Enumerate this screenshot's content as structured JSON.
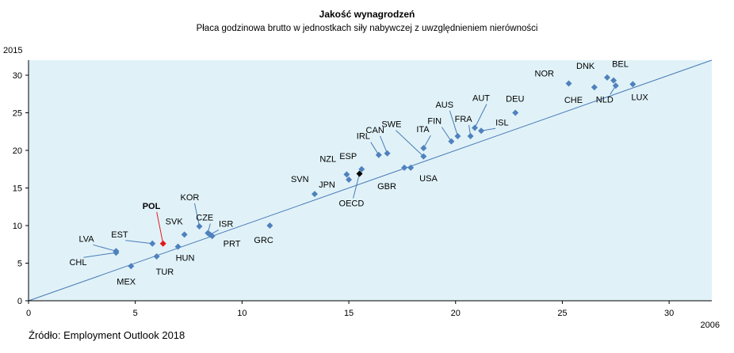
{
  "chart_data": {
    "type": "scatter",
    "title": "Jakość wynagrodzeń",
    "subtitle": "Płaca godzinowa brutto w jednostkach siły nabywczej z uwzględnieniem nierówności",
    "xlabel": "2006",
    "ylabel": "2015",
    "xlim": [
      0,
      32
    ],
    "ylim": [
      0,
      32
    ],
    "xticks": [
      0,
      5,
      10,
      15,
      20,
      25,
      30
    ],
    "yticks": [
      0,
      5,
      10,
      15,
      20,
      25,
      30
    ],
    "grid": false,
    "reference_line": "y = x",
    "colors": {
      "point": "#4f81bd",
      "highlight": "#e31a1c",
      "oecd": "#000000",
      "plot_background": "#e0f2f8",
      "line": "#4a7ab5"
    },
    "points": [
      {
        "label": "MEX",
        "x": 4.8,
        "y": 4.6
      },
      {
        "label": "CHL",
        "x": 4.1,
        "y": 6.4
      },
      {
        "label": "LVA",
        "x": 4.1,
        "y": 6.6
      },
      {
        "label": "EST",
        "x": 5.8,
        "y": 7.6
      },
      {
        "label": "TUR",
        "x": 6.0,
        "y": 5.9
      },
      {
        "label": "POL",
        "x": 6.3,
        "y": 7.6,
        "highlight": true
      },
      {
        "label": "HUN",
        "x": 7.0,
        "y": 7.2
      },
      {
        "label": "SVK",
        "x": 7.3,
        "y": 8.8
      },
      {
        "label": "KOR",
        "x": 8.0,
        "y": 9.9
      },
      {
        "label": "CZE",
        "x": 8.4,
        "y": 9.0
      },
      {
        "label": "ISR",
        "x": 8.5,
        "y": 8.8
      },
      {
        "label": "PRT",
        "x": 8.6,
        "y": 8.6
      },
      {
        "label": "GRC",
        "x": 11.3,
        "y": 10.0
      },
      {
        "label": "SVN",
        "x": 13.4,
        "y": 14.2
      },
      {
        "label": "NZL",
        "x": 14.9,
        "y": 16.8
      },
      {
        "label": "JPN",
        "x": 15.0,
        "y": 16.1
      },
      {
        "label": "OECD",
        "x": 15.5,
        "y": 16.9,
        "oecd": true
      },
      {
        "label": "ESP",
        "x": 15.6,
        "y": 17.5
      },
      {
        "label": "IRL",
        "x": 16.4,
        "y": 19.4
      },
      {
        "label": "CAN",
        "x": 16.8,
        "y": 19.6
      },
      {
        "label": "GBR",
        "x": 17.6,
        "y": 17.7
      },
      {
        "label": "USA",
        "x": 17.9,
        "y": 17.7
      },
      {
        "label": "ITA",
        "x": 18.5,
        "y": 20.3
      },
      {
        "label": "SWE",
        "x": 18.5,
        "y": 19.2
      },
      {
        "label": "FIN",
        "x": 19.8,
        "y": 21.2
      },
      {
        "label": "AUS",
        "x": 20.1,
        "y": 21.9
      },
      {
        "label": "FRA",
        "x": 20.7,
        "y": 21.9
      },
      {
        "label": "AUT",
        "x": 20.9,
        "y": 23.0
      },
      {
        "label": "ISL",
        "x": 21.2,
        "y": 22.6
      },
      {
        "label": "DEU",
        "x": 22.8,
        "y": 25.0
      },
      {
        "label": "NOR",
        "x": 25.3,
        "y": 28.9
      },
      {
        "label": "CHE",
        "x": 26.5,
        "y": 28.4
      },
      {
        "label": "DNK",
        "x": 27.1,
        "y": 29.7
      },
      {
        "label": "BEL",
        "x": 27.4,
        "y": 29.3
      },
      {
        "label": "NLD",
        "x": 27.5,
        "y": 28.6
      },
      {
        "label": "LUX",
        "x": 28.3,
        "y": 28.8
      }
    ]
  },
  "source": "Źródło: Employment Outlook 2018"
}
